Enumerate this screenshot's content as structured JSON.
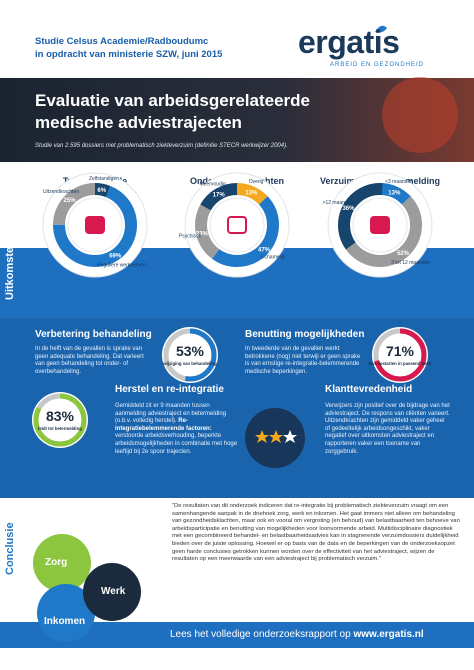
{
  "header": {
    "line1": "Studie Celsus Academie/Radboudumc",
    "line2": "in opdracht van ministerie SZW, juni 2015",
    "logo": "ergatis",
    "logo_tagline": "ARBEID EN GEZONDHEID"
  },
  "banner": {
    "title_line1": "Evaluatie van arbeidsgerelateerde",
    "title_line2": "medische adviestrajecten",
    "subtitle": "Studie van 2.595 dossiers met problematisch ziekteverzuim (definitie STECR werkwijzer 2004)."
  },
  "donuts": [
    {
      "title": "Type werkende",
      "segments": [
        {
          "name": "Zelfstandigen",
          "value": 6,
          "value_label": "6%",
          "color": "#17456e"
        },
        {
          "name": "Reguliere werknemers",
          "value": 69,
          "value_label": "69%",
          "color": "#1f78c8"
        },
        {
          "name": "Uitzendkrachten",
          "value": 25,
          "value_label": "25%",
          "color": "#9c9c9c"
        }
      ]
    },
    {
      "title": "Onderzochte klachten",
      "segments": [
        {
          "name": "Overig",
          "value": 13,
          "value_label": "13%",
          "color": "#f3a81f"
        },
        {
          "name": "Lichamelijk",
          "value": 47,
          "value_label": "47%",
          "color": "#1f78c8"
        },
        {
          "name": "Psychisch",
          "value": 23,
          "value_label": "23%",
          "color": "#9c9c9c"
        },
        {
          "name": "Meervoudig",
          "value": 17,
          "value_label": "17%",
          "color": "#17456e"
        }
      ]
    },
    {
      "title": "Verzuimduur bij aanmelding",
      "segments": [
        {
          "name": "<3 maanden",
          "value": 13,
          "value_label": "13%",
          "color": "#1f78c8"
        },
        {
          "name": "3 tot 12 maanden",
          "value": 52,
          "value_label": "52%",
          "color": "#9c9c9c"
        },
        {
          "name": ">12 maanden",
          "value": 36,
          "value_label": "36%",
          "color": "#17456e"
        }
      ]
    }
  ],
  "section_uitkomsten": "Uitkomsten",
  "outcomes": [
    {
      "title": "Verbetering behandeling",
      "text": "In de helft van de gevallen is sprake van geen adequate behandeling. Dat varieert van geen behandeling tot onder- of overbehandeling.",
      "value": 53,
      "value_label": "53%",
      "caption": "wijziging van behandeling",
      "color": "#1f78c8"
    },
    {
      "title": "Benutting mogelijkheden",
      "text": "In tweederde van de gevallen werkt betrokkene (nog) niet terwijl er geen sprake is van ernstige re-integratie-belemmerende medische beperkingen.",
      "value": 71,
      "value_label": "71%",
      "caption": "kan opstarten in passend werk",
      "color": "#d7194f"
    },
    {
      "title": "Herstel en re-integratie",
      "text": "Gemiddeld zit er 9 maanden tussen aanmelding adviestraject en betermelding (o.b.v. volledig herstel).",
      "bold": "Re-integratiebelemmerende factoren:",
      "text2": "verstoorde arbeidsverhouding, beperkte arbeidsmogelijkheden in combinatie met hoge leeftijd bij 2e spoor trajecten.",
      "value": 83,
      "value_label": "83%",
      "caption": "leidt tot betermelding",
      "color": "#8cc63f"
    },
    {
      "title": "Klanttevredenheid",
      "text": "Verwijzers zijn positief over de bijdrage van het adviestraject. De respons van cliënten varieert. Uitzendkrachten zijn gemiddeld vaker geheel of gedeeltelijk arbeidsongeschikt, vaker negatief over uitkomsten adviestraject en rapporteren vaker een toename van zorggebruik."
    }
  ],
  "conclusie": {
    "label": "Conclusie",
    "circles": [
      "Zorg",
      "Werk",
      "Inkomen"
    ],
    "quote": "“De resultaten van dit onderzoek indiceren dat re-integratie bij problematisch ziekteverzuim vraagt om een samenhangende aanpak in de driehoek zorg, werk en inkomen. Het gaat immers niet alleen om behandeling van gezondheidsklachten, maar ook en vooral om vergroting (en behoud) van belastbaarheid ten behoeve van arbeidsparticipatie en benutting van mogelijkheden voor loonvormende arbeid. Multidisciplinaire diagnostiek met een gecombineerd behandel- en belastbaarheidsadvies kan in stagnerende verzuimdossiers duidelijkheid bieden over de juiste oplossing. Hoewel er op basis van de data en de beperkingen van de onderzoeksopzet geen harde conclusies getrokken kunnen worden over de effectiviteit van het adviestraject, wijzen de resultaten op een meerwaarde van een adviestraject bij problematisch verzuim.”"
  },
  "footer": {
    "text": "Lees het volledige onderzoeksrapport op",
    "link": "www.ergatis.nl"
  }
}
